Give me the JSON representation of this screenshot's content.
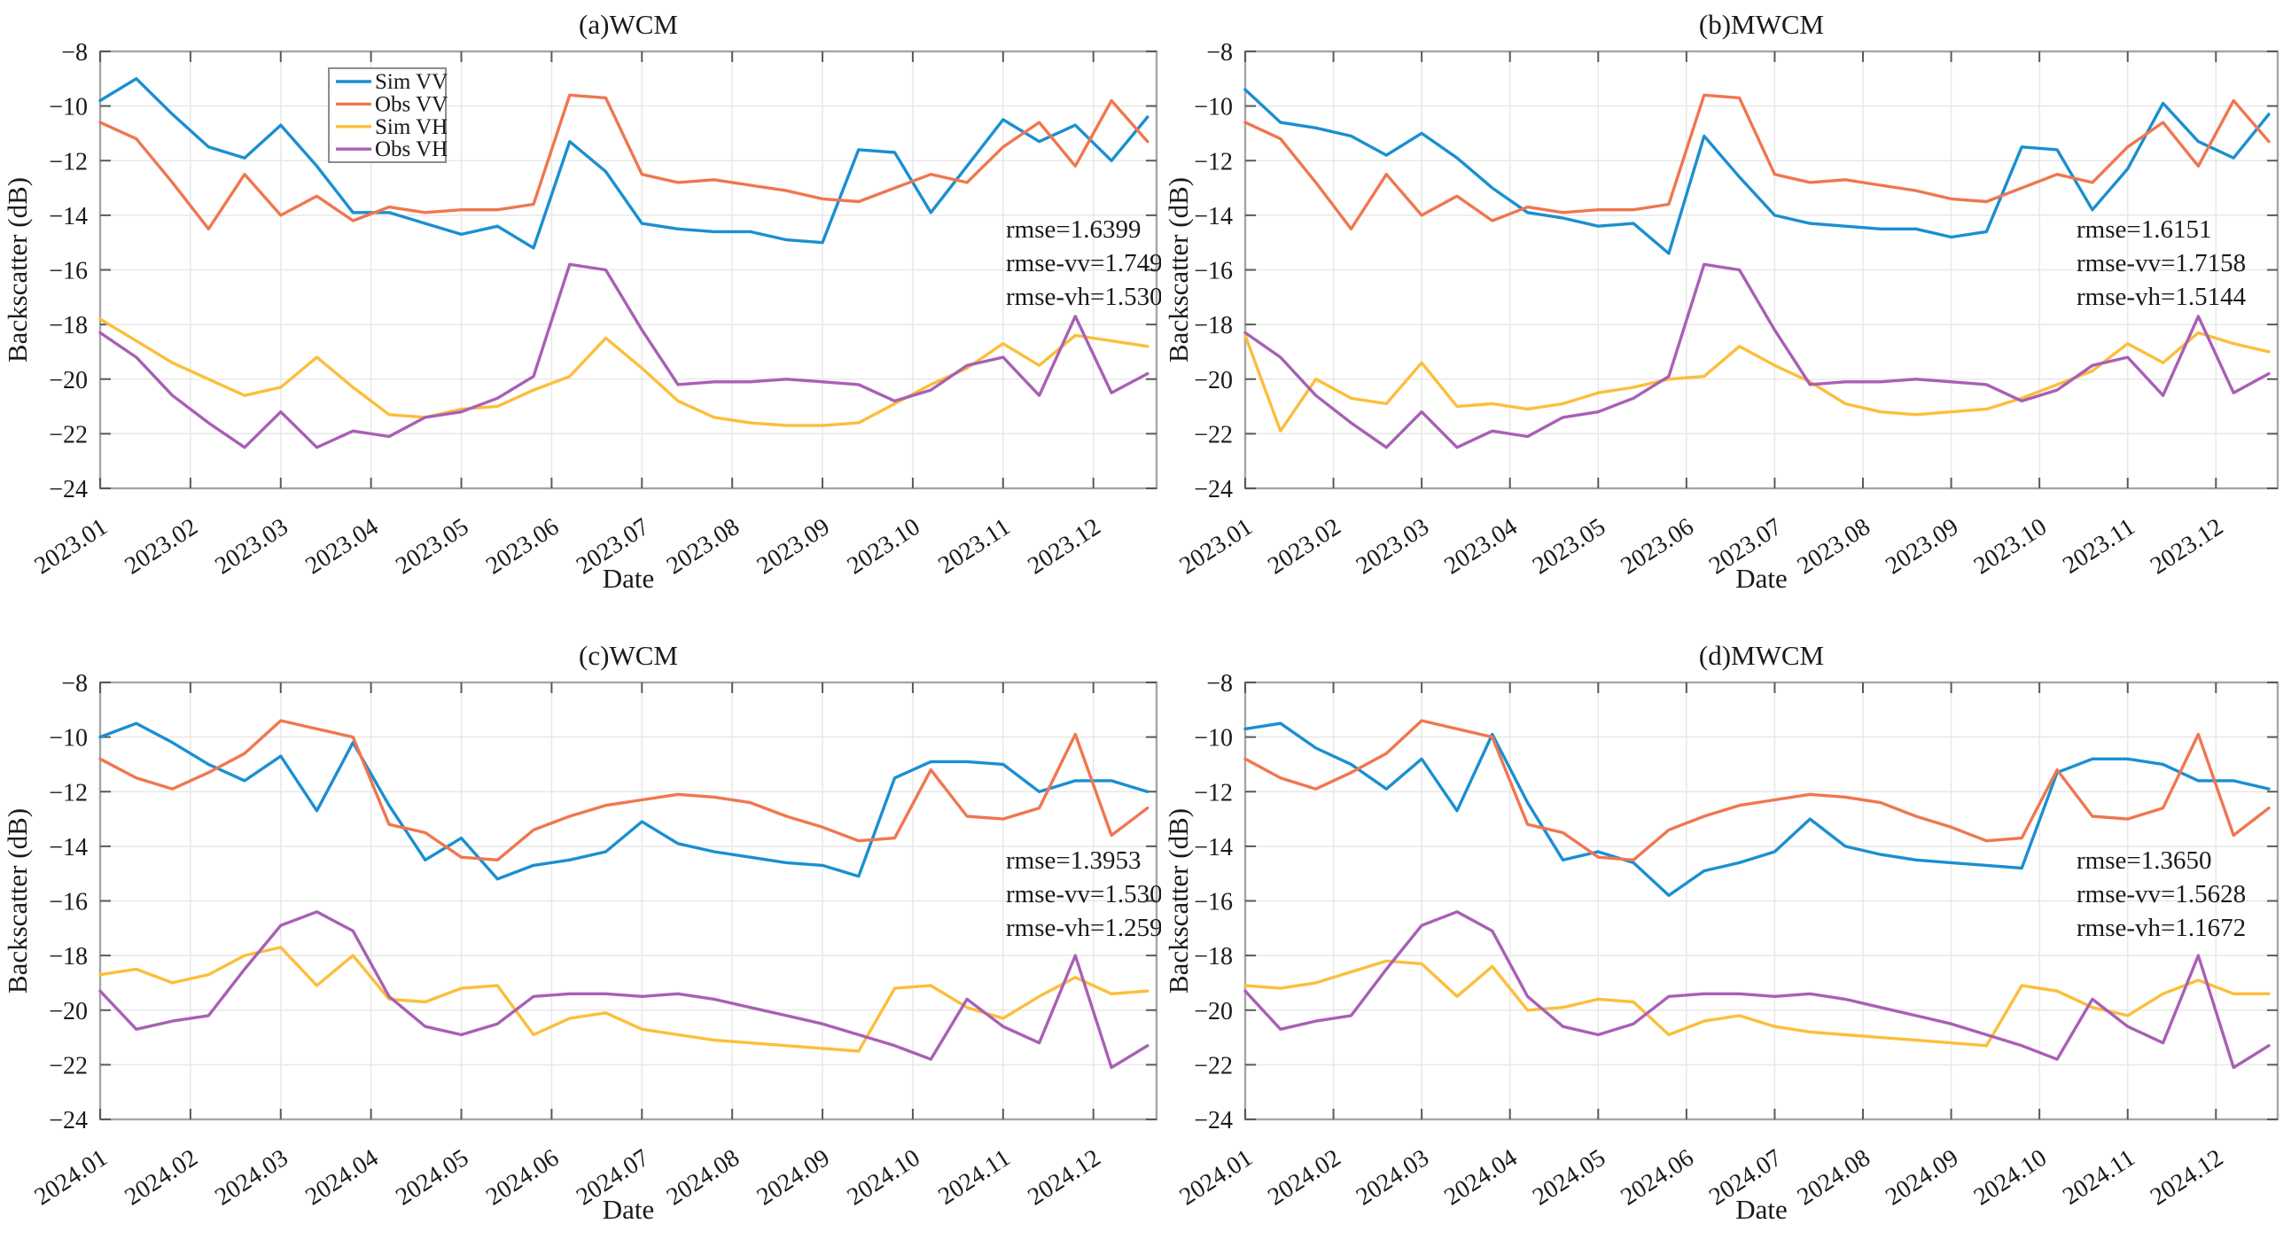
{
  "figure": {
    "background": "#ffffff"
  },
  "palette": {
    "sim_vv": "#1A8FD1",
    "obs_vv": "#F0764F",
    "sim_vh": "#FCBE3A",
    "obs_vh": "#A95FB5",
    "grid": "#E8E8E8",
    "frame": "#A6A6A6",
    "tick": "#595959",
    "text": "#1A1A1A"
  },
  "chart_data": [
    {
      "id": "a",
      "type": "line",
      "title": "(a)WCM",
      "xlabel": "Date",
      "ylabel": "Backscatter (dB)",
      "xlim": [
        1,
        12.7
      ],
      "ylim": [
        -24,
        -8
      ],
      "grid": true,
      "legend": {
        "show": true,
        "position": "upper-left"
      },
      "annotations": [
        "rmse=1.6399",
        "rmse-vv=1.7492",
        "rmse-vh=1.5305"
      ],
      "xticks": {
        "values": [
          1,
          2,
          3,
          4,
          5,
          6,
          7,
          8,
          9,
          10,
          11,
          12
        ],
        "labels": [
          "2023.01",
          "2023.02",
          "2023.03",
          "2023.04",
          "2023.05",
          "2023.06",
          "2023.07",
          "2023.08",
          "2023.09",
          "2023.10",
          "2023.11",
          "2023.12"
        ]
      },
      "yticks": {
        "values": [
          -8,
          -10,
          -12,
          -14,
          -16,
          -18,
          -20,
          -22,
          -24
        ],
        "labels": [
          "−8",
          "−10",
          "−12",
          "−14",
          "−16",
          "−18",
          "−20",
          "−22",
          "−24"
        ]
      },
      "x": [
        1.0,
        1.4,
        1.8,
        2.2,
        2.6,
        3.0,
        3.4,
        3.8,
        4.2,
        4.6,
        5.0,
        5.4,
        5.8,
        6.2,
        6.6,
        7.0,
        7.4,
        7.8,
        8.2,
        8.6,
        9.0,
        9.4,
        9.8,
        10.2,
        10.6,
        11.0,
        11.4,
        11.8,
        12.2,
        12.6
      ],
      "series": [
        {
          "name": "Sim VV",
          "color": "#1A8FD1",
          "values": [
            -9.8,
            -9.0,
            -10.3,
            -11.5,
            -11.9,
            -10.7,
            -12.2,
            -13.9,
            -13.9,
            -14.3,
            -14.7,
            -14.4,
            -15.2,
            -11.3,
            -12.4,
            -14.3,
            -14.5,
            -14.6,
            -14.6,
            -14.9,
            -15.0,
            -11.6,
            -11.7,
            -13.9,
            -12.2,
            -10.5,
            -11.3,
            -10.7,
            -12.0,
            -10.4
          ]
        },
        {
          "name": "Obs VV",
          "color": "#F0764F",
          "values": [
            -10.6,
            -11.2,
            -12.8,
            -14.5,
            -12.5,
            -14.0,
            -13.3,
            -14.2,
            -13.7,
            -13.9,
            -13.8,
            -13.8,
            -13.6,
            -9.6,
            -9.7,
            -12.5,
            -12.8,
            -12.7,
            -12.9,
            -13.1,
            -13.4,
            -13.5,
            -13.0,
            -12.5,
            -12.8,
            -11.5,
            -10.6,
            -12.2,
            -9.8,
            -11.3
          ]
        },
        {
          "name": "Sim VH",
          "color": "#FCBE3A",
          "values": [
            -17.8,
            -18.6,
            -19.4,
            -20.0,
            -20.6,
            -20.3,
            -19.2,
            -20.3,
            -21.3,
            -21.4,
            -21.1,
            -21.0,
            -20.4,
            -19.9,
            -18.5,
            -19.6,
            -20.8,
            -21.4,
            -21.6,
            -21.7,
            -21.7,
            -21.6,
            -20.9,
            -20.2,
            -19.6,
            -18.7,
            -19.5,
            -18.4,
            -18.6,
            -18.8
          ]
        },
        {
          "name": "Obs VH",
          "color": "#A95FB5",
          "values": [
            -18.3,
            -19.2,
            -20.6,
            -21.6,
            -22.5,
            -21.2,
            -22.5,
            -21.9,
            -22.1,
            -21.4,
            -21.2,
            -20.7,
            -19.9,
            -15.8,
            -16.0,
            -18.2,
            -20.2,
            -20.1,
            -20.1,
            -20.0,
            -20.1,
            -20.2,
            -20.8,
            -20.4,
            -19.5,
            -19.2,
            -20.6,
            -17.7,
            -20.5,
            -19.8
          ]
        }
      ]
    },
    {
      "id": "b",
      "type": "line",
      "title": "(b)MWCM",
      "xlabel": "Date",
      "ylabel": "Backscatter (dB)",
      "xlim": [
        1,
        12.7
      ],
      "ylim": [
        -24,
        -8
      ],
      "grid": true,
      "legend": {
        "show": false
      },
      "annotations": [
        "rmse=1.6151",
        "rmse-vv=1.7158",
        "rmse-vh=1.5144"
      ],
      "xticks": {
        "values": [
          1,
          2,
          3,
          4,
          5,
          6,
          7,
          8,
          9,
          10,
          11,
          12
        ],
        "labels": [
          "2023.01",
          "2023.02",
          "2023.03",
          "2023.04",
          "2023.05",
          "2023.06",
          "2023.07",
          "2023.08",
          "2023.09",
          "2023.10",
          "2023.11",
          "2023.12"
        ]
      },
      "yticks": {
        "values": [
          -8,
          -10,
          -12,
          -14,
          -16,
          -18,
          -20,
          -22,
          -24
        ],
        "labels": [
          "−8",
          "−10",
          "−12",
          "−14",
          "−16",
          "−18",
          "−20",
          "−22",
          "−24"
        ]
      },
      "x": [
        1.0,
        1.4,
        1.8,
        2.2,
        2.6,
        3.0,
        3.4,
        3.8,
        4.2,
        4.6,
        5.0,
        5.4,
        5.8,
        6.2,
        6.6,
        7.0,
        7.4,
        7.8,
        8.2,
        8.6,
        9.0,
        9.4,
        9.8,
        10.2,
        10.6,
        11.0,
        11.4,
        11.8,
        12.2,
        12.6
      ],
      "series": [
        {
          "name": "Sim VV",
          "color": "#1A8FD1",
          "values": [
            -9.4,
            -10.6,
            -10.8,
            -11.1,
            -11.8,
            -11.0,
            -11.9,
            -13.0,
            -13.9,
            -14.1,
            -14.4,
            -14.3,
            -15.4,
            -11.1,
            -12.6,
            -14.0,
            -14.3,
            -14.4,
            -14.5,
            -14.5,
            -14.8,
            -14.6,
            -11.5,
            -11.6,
            -13.8,
            -12.3,
            -9.9,
            -11.3,
            -11.9,
            -10.3
          ]
        },
        {
          "name": "Obs VV",
          "color": "#F0764F",
          "values": [
            -10.6,
            -11.2,
            -12.8,
            -14.5,
            -12.5,
            -14.0,
            -13.3,
            -14.2,
            -13.7,
            -13.9,
            -13.8,
            -13.8,
            -13.6,
            -9.6,
            -9.7,
            -12.5,
            -12.8,
            -12.7,
            -12.9,
            -13.1,
            -13.4,
            -13.5,
            -13.0,
            -12.5,
            -12.8,
            -11.5,
            -10.6,
            -12.2,
            -9.8,
            -11.3
          ]
        },
        {
          "name": "Sim VH",
          "color": "#FCBE3A",
          "values": [
            -18.4,
            -21.9,
            -20.0,
            -20.7,
            -20.9,
            -19.4,
            -21.0,
            -20.9,
            -21.1,
            -20.9,
            -20.5,
            -20.3,
            -20.0,
            -19.9,
            -18.8,
            -19.5,
            -20.1,
            -20.9,
            -21.2,
            -21.3,
            -21.2,
            -21.1,
            -20.7,
            -20.2,
            -19.7,
            -18.7,
            -19.4,
            -18.3,
            -18.7,
            -19.0
          ]
        },
        {
          "name": "Obs VH",
          "color": "#A95FB5",
          "values": [
            -18.3,
            -19.2,
            -20.6,
            -21.6,
            -22.5,
            -21.2,
            -22.5,
            -21.9,
            -22.1,
            -21.4,
            -21.2,
            -20.7,
            -19.9,
            -15.8,
            -16.0,
            -18.2,
            -20.2,
            -20.1,
            -20.1,
            -20.0,
            -20.1,
            -20.2,
            -20.8,
            -20.4,
            -19.5,
            -19.2,
            -20.6,
            -17.7,
            -20.5,
            -19.8
          ]
        }
      ]
    },
    {
      "id": "c",
      "type": "line",
      "title": "(c)WCM",
      "xlabel": "Date",
      "ylabel": "Backscatter (dB)",
      "xlim": [
        1,
        12.7
      ],
      "ylim": [
        -24,
        -8
      ],
      "grid": true,
      "legend": {
        "show": false
      },
      "annotations": [
        "rmse=1.3953",
        "rmse-vv=1.5307",
        "rmse-vh=1.2599"
      ],
      "xticks": {
        "values": [
          1,
          2,
          3,
          4,
          5,
          6,
          7,
          8,
          9,
          10,
          11,
          12
        ],
        "labels": [
          "2024.01",
          "2024.02",
          "2024.03",
          "2024.04",
          "2024.05",
          "2024.06",
          "2024.07",
          "2024.08",
          "2024.09",
          "2024.10",
          "2024.11",
          "2024.12"
        ]
      },
      "yticks": {
        "values": [
          -8,
          -10,
          -12,
          -14,
          -16,
          -18,
          -20,
          -22,
          -24
        ],
        "labels": [
          "−8",
          "−10",
          "−12",
          "−14",
          "−16",
          "−18",
          "−20",
          "−22",
          "−24"
        ]
      },
      "x": [
        1.0,
        1.4,
        1.8,
        2.2,
        2.6,
        3.0,
        3.4,
        3.8,
        4.2,
        4.6,
        5.0,
        5.4,
        5.8,
        6.2,
        6.6,
        7.0,
        7.4,
        7.8,
        8.2,
        8.6,
        9.0,
        9.4,
        9.8,
        10.2,
        10.6,
        11.0,
        11.4,
        11.8,
        12.2,
        12.6
      ],
      "series": [
        {
          "name": "Sim VV",
          "color": "#1A8FD1",
          "values": [
            -10.0,
            -9.5,
            -10.2,
            -11.0,
            -11.6,
            -10.7,
            -12.7,
            -10.2,
            -12.5,
            -14.5,
            -13.7,
            -15.2,
            -14.7,
            -14.5,
            -14.2,
            -13.1,
            -13.9,
            -14.2,
            -14.4,
            -14.6,
            -14.7,
            -15.1,
            -11.5,
            -10.9,
            -10.9,
            -11.0,
            -12.0,
            -11.6,
            -11.6,
            -12.0
          ]
        },
        {
          "name": "Obs VV",
          "color": "#F0764F",
          "values": [
            -10.8,
            -11.5,
            -11.9,
            -11.3,
            -10.6,
            -9.4,
            -9.7,
            -10.0,
            -13.2,
            -13.5,
            -14.4,
            -14.5,
            -13.4,
            -12.9,
            -12.5,
            -12.3,
            -12.1,
            -12.2,
            -12.4,
            -12.9,
            -13.3,
            -13.8,
            -13.7,
            -11.2,
            -12.9,
            -13.0,
            -12.6,
            -9.9,
            -13.6,
            -12.6
          ]
        },
        {
          "name": "Sim VH",
          "color": "#FCBE3A",
          "values": [
            -18.7,
            -18.5,
            -19.0,
            -18.7,
            -18.0,
            -17.7,
            -19.1,
            -18.0,
            -19.6,
            -19.7,
            -19.2,
            -19.1,
            -20.9,
            -20.3,
            -20.1,
            -20.7,
            -20.9,
            -21.1,
            -21.2,
            -21.3,
            -21.4,
            -21.5,
            -19.2,
            -19.1,
            -19.9,
            -20.3,
            -19.5,
            -18.8,
            -19.4,
            -19.3
          ]
        },
        {
          "name": "Obs VH",
          "color": "#A95FB5",
          "values": [
            -19.3,
            -20.7,
            -20.4,
            -20.2,
            -18.5,
            -16.9,
            -16.4,
            -17.1,
            -19.5,
            -20.6,
            -20.9,
            -20.5,
            -19.5,
            -19.4,
            -19.4,
            -19.5,
            -19.4,
            -19.6,
            -19.9,
            -20.2,
            -20.5,
            -20.9,
            -21.3,
            -21.8,
            -19.6,
            -20.6,
            -21.2,
            -18.0,
            -22.1,
            -21.3
          ]
        }
      ]
    },
    {
      "id": "d",
      "type": "line",
      "title": "(d)MWCM",
      "xlabel": "Date",
      "ylabel": "Backscatter (dB)",
      "xlim": [
        1,
        12.7
      ],
      "ylim": [
        -24,
        -8
      ],
      "grid": true,
      "legend": {
        "show": false
      },
      "annotations": [
        "rmse=1.3650",
        "rmse-vv=1.5628",
        "rmse-vh=1.1672"
      ],
      "xticks": {
        "values": [
          1,
          2,
          3,
          4,
          5,
          6,
          7,
          8,
          9,
          10,
          11,
          12
        ],
        "labels": [
          "2024.01",
          "2024.02",
          "2024.03",
          "2024.04",
          "2024.05",
          "2024.06",
          "2024.07",
          "2024.08",
          "2024.09",
          "2024.10",
          "2024.11",
          "2024.12"
        ]
      },
      "yticks": {
        "values": [
          -8,
          -10,
          -12,
          -14,
          -16,
          -18,
          -20,
          -22,
          -24
        ],
        "labels": [
          "−8",
          "−10",
          "−12",
          "−14",
          "−16",
          "−18",
          "−20",
          "−22",
          "−24"
        ]
      },
      "x": [
        1.0,
        1.4,
        1.8,
        2.2,
        2.6,
        3.0,
        3.4,
        3.8,
        4.2,
        4.6,
        5.0,
        5.4,
        5.8,
        6.2,
        6.6,
        7.0,
        7.4,
        7.8,
        8.2,
        8.6,
        9.0,
        9.4,
        9.8,
        10.2,
        10.6,
        11.0,
        11.4,
        11.8,
        12.2,
        12.6
      ],
      "series": [
        {
          "name": "Sim VV",
          "color": "#1A8FD1",
          "values": [
            -9.7,
            -9.5,
            -10.4,
            -11.0,
            -11.9,
            -10.8,
            -12.7,
            -9.9,
            -12.4,
            -14.5,
            -14.2,
            -14.6,
            -15.8,
            -14.9,
            -14.6,
            -14.2,
            -13.0,
            -14.0,
            -14.3,
            -14.5,
            -14.6,
            -14.7,
            -14.8,
            -11.3,
            -10.8,
            -10.8,
            -11.0,
            -11.6,
            -11.6,
            -11.9
          ]
        },
        {
          "name": "Obs VV",
          "color": "#F0764F",
          "values": [
            -10.8,
            -11.5,
            -11.9,
            -11.3,
            -10.6,
            -9.4,
            -9.7,
            -10.0,
            -13.2,
            -13.5,
            -14.4,
            -14.5,
            -13.4,
            -12.9,
            -12.5,
            -12.3,
            -12.1,
            -12.2,
            -12.4,
            -12.9,
            -13.3,
            -13.8,
            -13.7,
            -11.2,
            -12.9,
            -13.0,
            -12.6,
            -9.9,
            -13.6,
            -12.6
          ]
        },
        {
          "name": "Sim VH",
          "color": "#FCBE3A",
          "values": [
            -19.1,
            -19.2,
            -19.0,
            -18.6,
            -18.2,
            -18.3,
            -19.5,
            -18.4,
            -20.0,
            -19.9,
            -19.6,
            -19.7,
            -20.9,
            -20.4,
            -20.2,
            -20.6,
            -20.8,
            -20.9,
            -21.0,
            -21.1,
            -21.2,
            -21.3,
            -19.1,
            -19.3,
            -19.9,
            -20.2,
            -19.4,
            -18.9,
            -19.4,
            -19.4
          ]
        },
        {
          "name": "Obs VH",
          "color": "#A95FB5",
          "values": [
            -19.3,
            -20.7,
            -20.4,
            -20.2,
            -18.5,
            -16.9,
            -16.4,
            -17.1,
            -19.5,
            -20.6,
            -20.9,
            -20.5,
            -19.5,
            -19.4,
            -19.4,
            -19.5,
            -19.4,
            -19.6,
            -19.9,
            -20.2,
            -20.5,
            -20.9,
            -21.3,
            -21.8,
            -19.6,
            -20.6,
            -21.2,
            -18.0,
            -22.1,
            -21.3
          ]
        }
      ]
    }
  ]
}
